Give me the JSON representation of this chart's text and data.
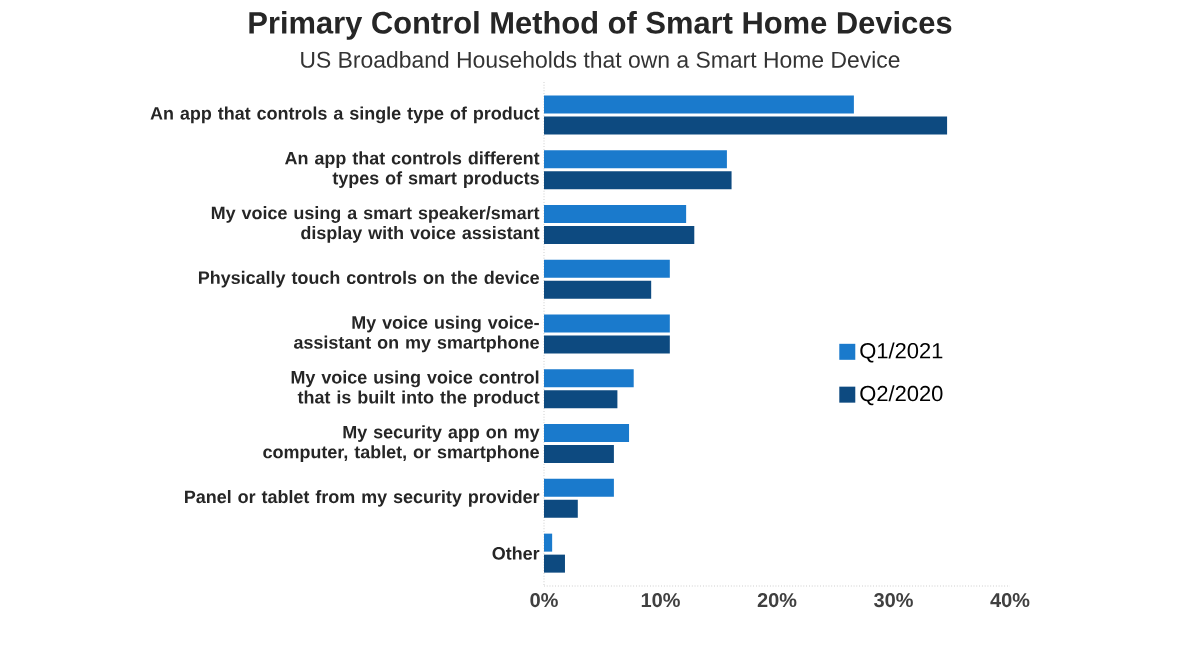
{
  "chart_data": {
    "type": "bar",
    "orientation": "horizontal",
    "title": "Primary Control Method of Smart Home Devices",
    "subtitle": "US Broadband Households that own a Smart Home Device",
    "categories": [
      "An app that controls a single type of product",
      "An app that controls different types of smart products",
      "My voice using a smart speaker/smart display with voice assistant",
      "Physically touch controls on the device",
      "My voice using voice-assistant on my smartphone",
      "My voice using voice control that is built into the product",
      "My security app on my computer, tablet, or smartphone",
      "Panel or tablet from my security provider",
      "Other"
    ],
    "series": [
      {
        "name": "Q1/2021",
        "color": "#1a7acc",
        "values": [
          26.6,
          15.7,
          12.2,
          10.8,
          10.8,
          7.7,
          7.3,
          6.0,
          0.7
        ]
      },
      {
        "name": "Q2/2020",
        "color": "#0d4a80",
        "values": [
          34.6,
          16.1,
          12.9,
          9.2,
          10.8,
          6.3,
          6.0,
          2.9,
          1.8
        ]
      }
    ],
    "xlim": [
      0,
      40
    ],
    "xticks": [
      {
        "value": 0,
        "label": "0%"
      },
      {
        "value": 10,
        "label": "10%"
      },
      {
        "value": 20,
        "label": "20%"
      },
      {
        "value": 30,
        "label": "30%"
      },
      {
        "value": 40,
        "label": "40%"
      }
    ],
    "grid": false,
    "legend": "right"
  }
}
